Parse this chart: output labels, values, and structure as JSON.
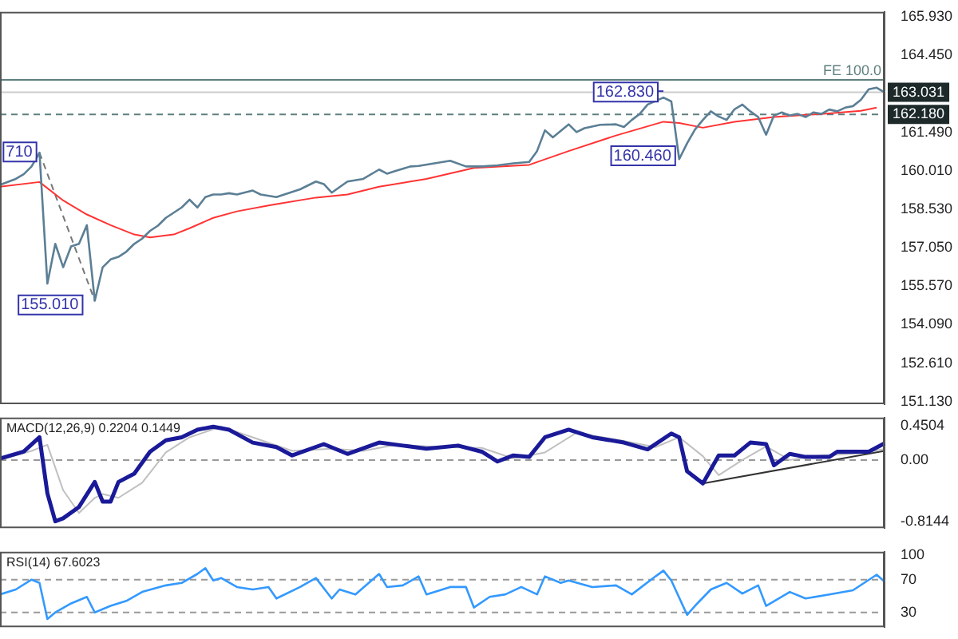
{
  "chart_data": [
    {
      "type": "line",
      "categories": [
        null,
        null,
        null,
        null,
        null,
        null,
        null,
        null,
        null,
        null,
        null,
        null,
        null,
        null,
        null,
        null,
        null,
        null,
        null,
        null,
        null,
        null,
        null,
        null,
        null,
        null,
        null,
        null,
        null,
        null,
        null,
        null,
        null,
        null,
        null,
        null,
        null,
        null,
        null,
        null,
        null,
        null,
        null,
        null,
        null,
        null,
        null,
        null,
        null,
        null,
        null,
        null,
        null,
        null,
        null,
        null,
        null,
        null,
        null,
        null,
        null,
        null,
        null,
        null,
        null,
        null,
        null,
        null,
        null,
        null,
        null,
        null,
        null,
        null,
        null,
        null,
        null,
        null,
        null,
        null,
        null,
        null,
        null,
        null,
        null,
        null,
        null,
        null,
        null,
        null,
        null,
        null,
        null,
        null,
        null,
        null,
        null,
        null,
        null,
        null,
        null,
        null,
        null,
        null,
        null,
        null,
        null,
        null,
        null,
        null,
        null,
        null,
        null
      ],
      "ylim": [
        151.03,
        166.13
      ],
      "tick_labels": "y",
      "yticks": [
        {
          "value": 165.93,
          "label": "165.930"
        },
        {
          "value": 164.45,
          "label": "164.450"
        },
        {
          "value": 161.49,
          "label": "161.490"
        },
        {
          "value": 160.01,
          "label": "160.010"
        },
        {
          "value": 158.53,
          "label": "158.530"
        },
        {
          "value": 157.05,
          "label": "157.050"
        },
        {
          "value": 155.57,
          "label": "155.570"
        },
        {
          "value": 154.09,
          "label": "154.090"
        },
        {
          "value": 152.61,
          "label": "152.610"
        },
        {
          "value": 151.13,
          "label": "151.130"
        }
      ],
      "series": [
        {
          "color": "#5b7f95",
          "values": [
            159.47,
            null,
            159.7,
            159.88,
            160.18,
            160.71,
            155.67,
            157.2,
            156.3,
            157.1,
            157.2,
            157.92,
            155.01,
            156.3,
            156.6,
            156.7,
            156.9,
            157.2,
            157.4,
            157.7,
            157.9,
            158.2,
            158.4,
            158.6,
            158.9,
            158.6,
            159.0,
            159.1,
            159.1,
            159.15,
            159.1,
            null,
            159.25,
            159.1,
            null,
            159.0,
            159.1,
            null,
            159.3,
            null,
            159.6,
            159.5,
            159.17,
            null,
            159.6,
            null,
            159.7,
            null,
            160.06,
            159.9,
            160.0,
            null,
            160.18,
            160.2,
            null,
            160.3,
            null,
            160.4,
            null,
            160.18,
            null,
            160.18,
            null,
            160.22,
            null,
            160.3,
            null,
            160.35,
            160.77,
            161.57,
            161.3,
            null,
            161.8,
            161.5,
            161.65,
            null,
            161.78,
            null,
            161.8,
            161.7,
            161.97,
            162.2,
            162.56,
            null,
            162.83,
            162.68,
            160.46,
            161.07,
            161.6,
            161.97,
            162.3,
            162.1,
            161.97,
            162.38,
            162.56,
            162.3,
            162.08,
            161.4,
            162.14,
            162.26,
            162.14,
            162.2,
            162.08,
            162.26,
            162.2,
            162.37,
            162.3,
            162.44,
            162.5,
            162.74,
            163.15,
            163.21,
            163.031
          ]
        },
        {
          "color": "#ff3333",
          "values": [
            159.4,
            null,
            null,
            null,
            null,
            159.58,
            null,
            null,
            158.87,
            null,
            null,
            158.33,
            null,
            null,
            157.92,
            null,
            null,
            157.56,
            null,
            157.45,
            null,
            null,
            157.56,
            null,
            157.8,
            null,
            null,
            158.2,
            null,
            null,
            158.45,
            null,
            null,
            null,
            158.68,
            null,
            null,
            null,
            null,
            null,
            158.98,
            null,
            null,
            null,
            159.1,
            null,
            null,
            null,
            159.4,
            null,
            null,
            null,
            null,
            null,
            159.7,
            null,
            null,
            null,
            null,
            null,
            160.12,
            null,
            null,
            null,
            null,
            null,
            null,
            160.24,
            null,
            null,
            null,
            null,
            160.77,
            null,
            null,
            null,
            null,
            null,
            161.37,
            null,
            null,
            null,
            null,
            null,
            161.9,
            null,
            161.85,
            null,
            null,
            161.67,
            null,
            null,
            null,
            161.9,
            null,
            null,
            null,
            null,
            162.08,
            null,
            null,
            null,
            null,
            null,
            162.2,
            null,
            null,
            null,
            null,
            162.32,
            null,
            162.44,
            null
          ]
        },
        {
          "color": "#777777",
          "line_style": "dashed",
          "values": [
            null,
            null,
            null,
            null,
            null,
            160.71,
            null,
            null,
            null,
            null,
            null,
            null,
            155.01,
            null,
            null,
            null,
            null,
            null,
            null,
            null,
            null,
            null,
            null,
            null,
            null,
            null,
            null,
            null,
            null,
            null,
            null,
            null,
            null,
            null,
            null,
            null,
            null,
            null,
            null,
            null,
            null,
            null,
            null,
            null,
            null,
            null,
            null,
            null,
            null,
            null,
            null,
            null,
            null,
            null,
            null,
            null,
            null,
            null,
            null,
            null,
            null,
            null,
            null,
            null,
            null,
            null,
            null,
            null,
            null,
            null,
            null,
            null,
            null,
            null,
            null,
            null,
            null,
            null,
            null,
            null,
            null,
            null,
            null,
            null,
            null,
            null,
            null,
            null,
            null,
            null,
            null,
            null,
            null,
            null,
            null,
            null,
            null,
            null,
            null,
            null,
            null,
            null,
            null,
            null,
            null,
            null,
            null,
            null,
            null,
            null,
            null,
            null,
            null
          ]
        }
      ],
      "ref_lines": [
        {
          "axis": "y",
          "value": 163.51,
          "label": "FE 100.0",
          "color": "#5f7f7f"
        },
        {
          "axis": "y",
          "value": 163.031,
          "label": "163.031",
          "color": "#cccccc"
        },
        {
          "axis": "y",
          "value": 162.18,
          "label": "162.180",
          "color": "#5f7f7f",
          "line_style": "dashed"
        }
      ],
      "annotations": [
        "710",
        "155.010",
        {
          "text": "162.830",
          "y": 162.83
        },
        "160.460"
      ]
    },
    {
      "type": "line",
      "title": "MACD(12,26,9) 0.2204 0.1449",
      "categories": [
        null,
        null,
        null,
        null,
        null,
        null,
        null,
        null,
        null,
        null,
        null,
        null,
        null,
        null,
        null,
        null,
        null,
        null,
        null,
        null,
        null,
        null,
        null,
        null,
        null,
        null,
        null,
        null,
        null,
        null,
        null,
        null,
        null,
        null,
        null,
        null,
        null,
        null,
        null,
        null,
        null,
        null,
        null,
        null,
        null,
        null,
        null,
        null,
        null,
        null,
        null,
        null,
        null,
        null,
        null,
        null,
        null,
        null,
        null,
        null,
        null,
        null,
        null,
        null,
        null,
        null,
        null,
        null,
        null,
        null,
        null,
        null,
        null,
        null,
        null,
        null,
        null,
        null,
        null,
        null,
        null,
        null,
        null,
        null,
        null,
        null,
        null,
        null,
        null,
        null,
        null,
        null,
        null,
        null,
        null,
        null,
        null,
        null,
        null,
        null,
        null,
        null,
        null,
        null,
        null,
        null,
        null,
        null,
        null,
        null,
        null,
        null,
        null
      ],
      "ylim": [
        -0.9,
        0.56
      ],
      "tick_labels": "y",
      "yticks": [
        0.4504,
        {
          "value": 0,
          "label": "0.00"
        },
        -0.8144
      ],
      "series": [
        {
          "color": "#1a1a99",
          "values": [
            0.02,
            null,
            null,
            0.11,
            null,
            0.3,
            -0.44,
            -0.81,
            -0.77,
            null,
            -0.62,
            null,
            -0.29,
            -0.55,
            -0.55,
            -0.29,
            null,
            -0.18,
            null,
            0.11,
            null,
            0.26,
            null,
            0.3,
            null,
            0.4,
            null,
            0.44,
            null,
            0.4,
            null,
            null,
            0.23,
            null,
            null,
            0.17,
            null,
            0.06,
            null,
            null,
            null,
            0.21,
            null,
            null,
            0.08,
            null,
            null,
            null,
            0.23,
            null,
            null,
            0.19,
            null,
            null,
            0.15,
            null,
            null,
            null,
            0.19,
            null,
            null,
            0.11,
            null,
            -0.02,
            null,
            0.06,
            null,
            0.04,
            null,
            0.3,
            null,
            null,
            0.4,
            null,
            null,
            0.3,
            null,
            null,
            null,
            0.23,
            null,
            null,
            0.14,
            null,
            null,
            0.35,
            0.3,
            -0.15,
            null,
            -0.31,
            null,
            0.06,
            null,
            0.06,
            null,
            0.23,
            null,
            0.21,
            -0.07,
            null,
            0.08,
            null,
            0.04,
            null,
            null,
            0.04,
            0.11,
            null,
            null,
            null,
            0.11,
            null,
            0.2204
          ]
        },
        {
          "color": "#c0c0c0",
          "values": [
            0.0,
            null,
            null,
            null,
            0.12,
            null,
            0.2,
            null,
            -0.4,
            null,
            -0.7,
            null,
            -0.5,
            -0.45,
            null,
            -0.5,
            null,
            null,
            -0.3,
            null,
            null,
            0.1,
            null,
            null,
            0.3,
            null,
            null,
            null,
            0.44,
            null,
            null,
            null,
            0.3,
            null,
            null,
            null,
            null,
            0.12,
            null,
            null,
            null,
            null,
            0.15,
            null,
            null,
            null,
            0.12,
            null,
            null,
            null,
            0.2,
            null,
            null,
            null,
            null,
            null,
            0.17,
            null,
            null,
            null,
            null,
            0.16,
            null,
            null,
            null,
            0.02,
            null,
            null,
            null,
            0.1,
            null,
            null,
            null,
            0.36,
            null,
            null,
            null,
            null,
            0.27,
            null,
            null,
            null,
            null,
            0.17,
            null,
            null,
            0.3,
            null,
            null,
            0.05,
            null,
            -0.2,
            null,
            null,
            0.0,
            null,
            null,
            0.18,
            null,
            null,
            0.0,
            null,
            null,
            null,
            0.06,
            null,
            null,
            null,
            0.08,
            null,
            null,
            null,
            0.1449
          ]
        },
        {
          "color": "#333333",
          "values": [
            null,
            null,
            null,
            null,
            null,
            null,
            null,
            null,
            null,
            null,
            null,
            null,
            null,
            null,
            null,
            null,
            null,
            null,
            null,
            null,
            null,
            null,
            null,
            null,
            null,
            null,
            null,
            null,
            null,
            null,
            null,
            null,
            null,
            null,
            null,
            null,
            null,
            null,
            null,
            null,
            null,
            null,
            null,
            null,
            null,
            null,
            null,
            null,
            null,
            null,
            null,
            null,
            null,
            null,
            null,
            null,
            null,
            null,
            null,
            null,
            null,
            null,
            null,
            null,
            null,
            null,
            null,
            null,
            null,
            null,
            null,
            null,
            null,
            null,
            null,
            null,
            null,
            null,
            null,
            null,
            null,
            null,
            null,
            null,
            null,
            null,
            null,
            null,
            null,
            -0.31,
            null,
            null,
            null,
            null,
            null,
            null,
            null,
            null,
            null,
            null,
            null,
            null,
            null,
            null,
            null,
            null,
            null,
            null,
            null,
            null,
            null,
            null,
            0.12
          ]
        }
      ],
      "ref_lines": [
        {
          "axis": "y",
          "value": 0,
          "color": "#999999",
          "line_style": "dashed"
        }
      ]
    },
    {
      "type": "line",
      "title": "RSI(14) 67.6023",
      "categories": [
        null,
        null,
        null,
        null,
        null,
        null,
        null,
        null,
        null,
        null,
        null,
        null,
        null,
        null,
        null,
        null,
        null,
        null,
        null,
        null,
        null,
        null,
        null,
        null,
        null,
        null,
        null,
        null,
        null,
        null,
        null,
        null,
        null,
        null,
        null,
        null,
        null,
        null,
        null,
        null,
        null,
        null,
        null,
        null,
        null,
        null,
        null,
        null,
        null,
        null,
        null,
        null,
        null,
        null,
        null,
        null,
        null,
        null,
        null,
        null,
        null,
        null,
        null,
        null,
        null,
        null,
        null,
        null,
        null,
        null,
        null,
        null,
        null,
        null,
        null,
        null,
        null,
        null,
        null,
        null,
        null,
        null,
        null,
        null,
        null,
        null,
        null,
        null,
        null,
        null,
        null,
        null,
        null,
        null,
        null,
        null,
        null,
        null,
        null,
        null,
        null,
        null,
        null,
        null,
        null,
        null,
        null,
        null,
        null,
        null,
        null,
        null,
        null
      ],
      "ylim": [
        12,
        104
      ],
      "tick_labels": "y",
      "yticks": [
        100,
        70,
        30
      ],
      "series": [
        {
          "color": "#3399ff",
          "values": [
            52,
            null,
            58,
            null,
            70,
            66,
            22,
            30,
            null,
            41,
            null,
            49,
            30,
            null,
            38,
            null,
            44,
            null,
            55,
            null,
            null,
            63,
            null,
            66,
            null,
            77,
            84,
            69,
            72,
            null,
            61,
            null,
            58,
            null,
            61,
            47,
            null,
            null,
            61,
            null,
            72,
            null,
            47,
            58,
            null,
            52,
            null,
            null,
            77,
            61,
            null,
            63,
            null,
            74,
            52,
            null,
            null,
            61,
            null,
            61,
            36,
            null,
            49,
            null,
            52,
            null,
            61,
            null,
            52,
            74,
            null,
            66,
            69,
            null,
            null,
            61,
            null,
            null,
            63,
            null,
            52,
            null,
            null,
            74,
            81,
            69,
            null,
            27,
            38,
            null,
            58,
            null,
            66,
            null,
            53,
            null,
            63,
            38,
            null,
            null,
            55,
            null,
            47,
            null,
            null,
            52,
            null,
            null,
            57,
            null,
            null,
            76,
            67.6
          ]
        }
      ],
      "ref_lines": [
        {
          "axis": "y",
          "value": 70,
          "color": "#999999",
          "line_style": "dashed"
        },
        {
          "axis": "y",
          "value": 30,
          "color": "#999999",
          "line_style": "dashed"
        }
      ]
    }
  ]
}
